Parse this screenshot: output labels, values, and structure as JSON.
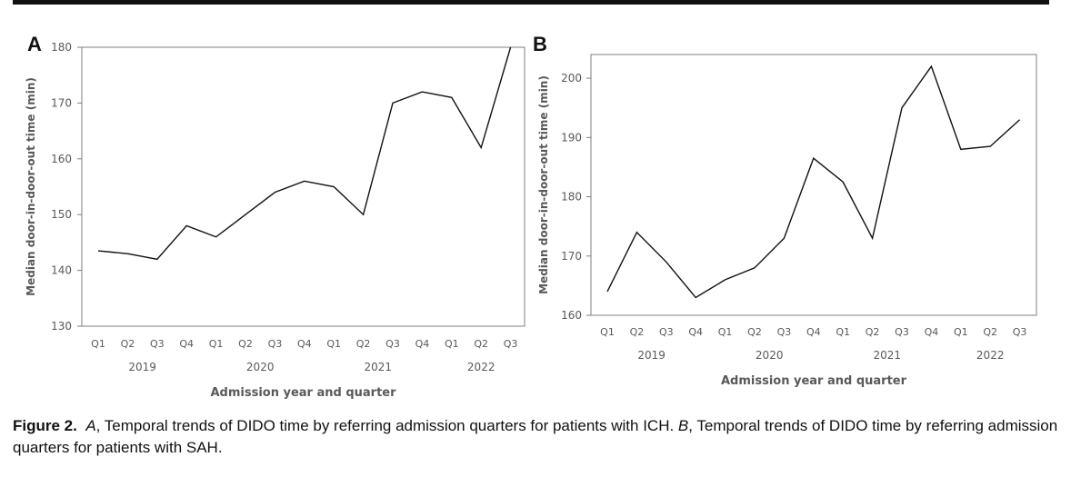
{
  "panels": {
    "a_letter": "A",
    "b_letter": "B"
  },
  "caption": {
    "figure_label": "Figure 2.",
    "panel_a": "A",
    "text_a": ", Temporal trends of DIDO time by referring admission quarters for patients with ICH. ",
    "panel_b": "B",
    "text_b": ", Temporal trends of DIDO time by referring admission quarters for patients with SAH."
  },
  "chart_data": [
    {
      "type": "line",
      "panel": "A",
      "title": "",
      "ylabel": "Median door-in-door-out time (min)",
      "xlabel": "Admission year and quarter",
      "categories": [
        "Q1",
        "Q2",
        "Q3",
        "Q4",
        "Q1",
        "Q2",
        "Q3",
        "Q4",
        "Q1",
        "Q2",
        "Q3",
        "Q4",
        "Q1",
        "Q2",
        "Q3"
      ],
      "year_groups": [
        {
          "label": "2019",
          "start": 0,
          "end": 3
        },
        {
          "label": "2020",
          "start": 4,
          "end": 7
        },
        {
          "label": "2021",
          "start": 8,
          "end": 11
        },
        {
          "label": "2022",
          "start": 12,
          "end": 14
        }
      ],
      "values": [
        143.5,
        143,
        142,
        148,
        146,
        150,
        154,
        156,
        155,
        150,
        170,
        172,
        171,
        162,
        180
      ],
      "ylim": [
        130,
        180
      ],
      "yticks": [
        130,
        140,
        150,
        160,
        170,
        180
      ],
      "grid": false,
      "line_color": "#111111"
    },
    {
      "type": "line",
      "panel": "B",
      "title": "",
      "ylabel": "Median door-in-door-out time (min)",
      "xlabel": "Admission year and quarter",
      "categories": [
        "Q1",
        "Q2",
        "Q3",
        "Q4",
        "Q1",
        "Q2",
        "Q3",
        "Q4",
        "Q1",
        "Q2",
        "Q3",
        "Q4",
        "Q1",
        "Q2",
        "Q3"
      ],
      "year_groups": [
        {
          "label": "2019",
          "start": 0,
          "end": 3
        },
        {
          "label": "2020",
          "start": 4,
          "end": 7
        },
        {
          "label": "2021",
          "start": 8,
          "end": 11
        },
        {
          "label": "2022",
          "start": 12,
          "end": 14
        }
      ],
      "values": [
        164,
        174,
        169,
        163,
        166,
        168,
        173,
        186.5,
        182.5,
        173,
        195,
        202,
        188,
        188.5,
        193
      ],
      "ylim": [
        160,
        204
      ],
      "yticks": [
        160,
        170,
        180,
        190,
        200
      ],
      "grid": false,
      "line_color": "#111111"
    }
  ]
}
